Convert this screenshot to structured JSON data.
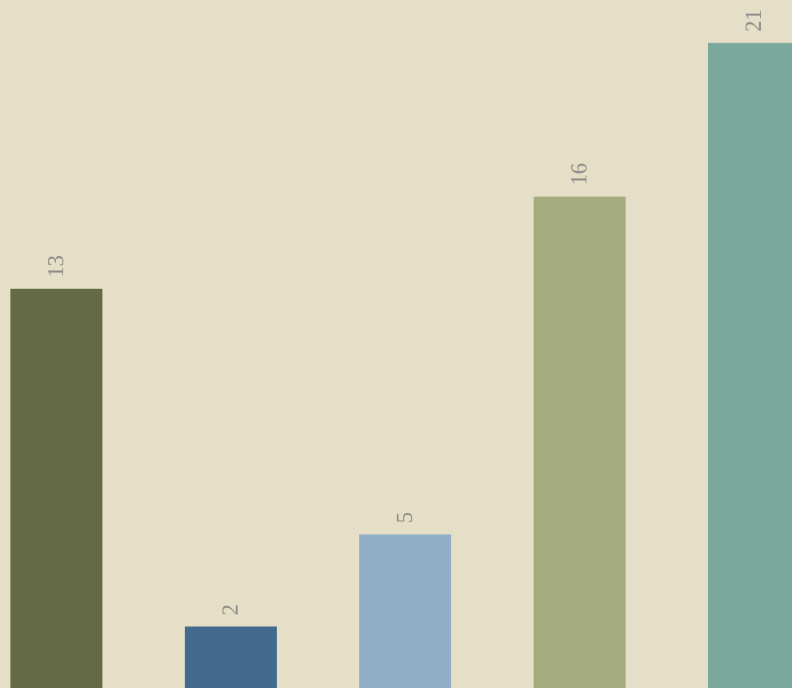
{
  "chart_data": {
    "type": "bar",
    "categories": [
      "",
      "",
      "",
      "",
      ""
    ],
    "values": [
      13,
      2,
      5,
      16,
      21
    ],
    "data_labels": [
      "13",
      "2",
      "5",
      "16",
      "21"
    ],
    "colors": [
      "#646a45",
      "#436a8c",
      "#93afc8",
      "#a3ab7f",
      "#7ba89c"
    ],
    "ylim": [
      0,
      22.4
    ],
    "title": "",
    "xlabel": "",
    "ylabel": "",
    "grid": false,
    "legend": "none",
    "background": "#e6dfc7",
    "label_color": "#8a8a86",
    "label_orientation": "vertical"
  }
}
